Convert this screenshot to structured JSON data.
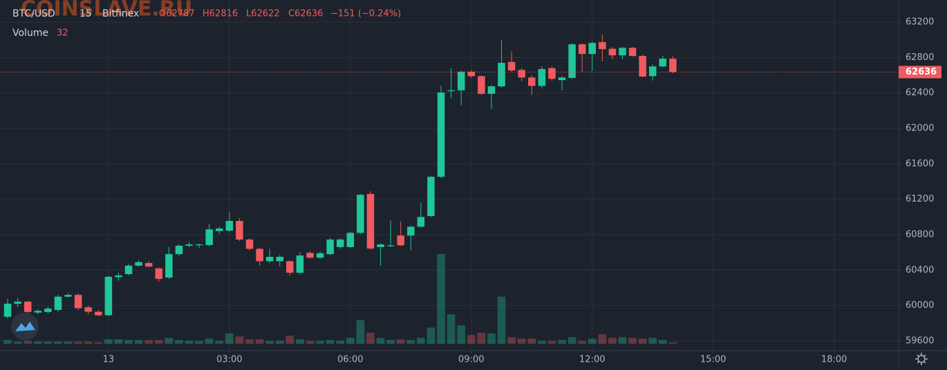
{
  "chart_data": {
    "type": "candlestick",
    "watermark": "COINSLAVE.RU",
    "symbol": "BTC/USD",
    "interval": "15",
    "exchange": "Bitfinex",
    "ohlc_labels": [
      "O62787",
      "H62816",
      "L62622",
      "C62636"
    ],
    "change_label": "−151 (−0.24%)",
    "volume_title": "Volume",
    "up_color": "#1fc79a",
    "down_color": "#ef5b60",
    "x": [
      -2.5,
      -2.25,
      -2,
      -1.75,
      -1.5,
      -1.25,
      -1,
      -0.75,
      -0.5,
      -0.25,
      0,
      0.25,
      0.5,
      0.75,
      1,
      1.25,
      1.5,
      1.75,
      2,
      2.25,
      2.5,
      2.75,
      3,
      3.25,
      3.5,
      3.75,
      4,
      4.25,
      4.5,
      4.75,
      5,
      5.25,
      5.5,
      5.75,
      6,
      6.25,
      6.5,
      6.75,
      7,
      7.25,
      7.5,
      7.75,
      8,
      8.25,
      8.5,
      8.75,
      9,
      9.25,
      9.5,
      9.75,
      10,
      10.25,
      10.5,
      10.75,
      11,
      11.25,
      11.5,
      11.75,
      12,
      12.25,
      12.5,
      12.75,
      13,
      13.25,
      13.5,
      13.75,
      14
    ],
    "open": [
      59873,
      60020,
      60044,
      59920,
      59927,
      59950,
      60100,
      60120,
      59980,
      59930,
      59890,
      60320,
      60355,
      60450,
      60480,
      60420,
      60316,
      60580,
      60675,
      60680,
      60683,
      60840,
      60845,
      60955,
      60745,
      60640,
      60500,
      60500,
      60500,
      60370,
      60595,
      60540,
      60580,
      60660,
      60660,
      60820,
      61260,
      60660,
      60670,
      60790,
      60790,
      60890,
      61010,
      61454,
      62420,
      62430,
      62640,
      62590,
      62390,
      62475,
      62750,
      62660,
      62575,
      62480,
      62680,
      62545,
      62570,
      62950,
      62840,
      62975,
      62900,
      62825,
      62910,
      62818,
      62590,
      62700,
      62787
    ],
    "high": [
      60075,
      60083,
      60052,
      59960,
      59990,
      60120,
      60140,
      60140,
      60000,
      59950,
      60335,
      60370,
      60470,
      60510,
      60500,
      60430,
      60660,
      60690,
      60720,
      60700,
      60920,
      60890,
      61060,
      60990,
      60760,
      60650,
      60640,
      60570,
      60510,
      60600,
      60610,
      60610,
      60760,
      60760,
      60830,
      61260,
      61290,
      60700,
      60960,
      60950,
      60900,
      61160,
      61460,
      62480,
      62680,
      62650,
      62660,
      62600,
      62490,
      63000,
      62870,
      62680,
      62600,
      62700,
      62700,
      62590,
      62960,
      62960,
      62980,
      63060,
      62920,
      62920,
      62920,
      62830,
      62720,
      62820,
      62816
    ],
    "low": [
      59850,
      59982,
      59904,
      59900,
      59910,
      59930,
      60090,
      59950,
      59900,
      59880,
      59880,
      60280,
      60340,
      60440,
      60430,
      60270,
      60300,
      60560,
      60660,
      60650,
      60670,
      60810,
      60830,
      60730,
      60620,
      60450,
      60480,
      60440,
      60340,
      60350,
      60530,
      60530,
      60570,
      60640,
      60650,
      60810,
      60630,
      60450,
      60660,
      60670,
      60620,
      60880,
      61000,
      61440,
      62340,
      62260,
      62570,
      62380,
      62220,
      62460,
      62640,
      62530,
      62380,
      62450,
      62540,
      62430,
      62560,
      62640,
      62650,
      62760,
      62780,
      62780,
      62810,
      62580,
      62540,
      62690,
      62622
    ],
    "close": [
      60021,
      60044,
      59927,
      59940,
      59966,
      60100,
      60120,
      59970,
      59930,
      59890,
      60325,
      60340,
      60450,
      60490,
      60440,
      60300,
      60580,
      60675,
      60690,
      60690,
      60860,
      60870,
      60955,
      60745,
      60640,
      60500,
      60550,
      60550,
      60370,
      60565,
      60540,
      60590,
      60745,
      60745,
      60820,
      61250,
      60643,
      60690,
      60680,
      60680,
      60890,
      61000,
      61454,
      62405,
      62430,
      62640,
      62590,
      62390,
      62475,
      62740,
      62655,
      62575,
      62480,
      62670,
      62560,
      62575,
      62950,
      62840,
      62965,
      62895,
      62825,
      62910,
      62818,
      62585,
      62700,
      62787,
      62636
    ],
    "volume": [
      75,
      45,
      60,
      45,
      45,
      45,
      45,
      45,
      45,
      30,
      90,
      90,
      75,
      75,
      75,
      75,
      120,
      75,
      60,
      60,
      105,
      60,
      210,
      150,
      90,
      90,
      60,
      60,
      165,
      90,
      60,
      60,
      75,
      60,
      120,
      480,
      225,
      120,
      75,
      90,
      75,
      120,
      330,
      1830,
      600,
      375,
      180,
      225,
      210,
      960,
      135,
      105,
      105,
      60,
      60,
      75,
      135,
      60,
      105,
      195,
      120,
      135,
      120,
      105,
      120,
      75,
      32
    ],
    "volume_lim": [
      0,
      7000
    ],
    "xlim": [
      -2.69,
      19.6
    ],
    "xticks": [
      {
        "value": 0,
        "label": "13"
      },
      {
        "value": 3,
        "label": "03:00"
      },
      {
        "value": 6,
        "label": "06:00"
      },
      {
        "value": 9,
        "label": "09:00"
      },
      {
        "value": 12,
        "label": "12:00"
      },
      {
        "value": 15,
        "label": "15:00"
      },
      {
        "value": 18,
        "label": "18:00"
      }
    ],
    "ylim": [
      59490,
      63450
    ],
    "yticks": [
      59600,
      60000,
      60400,
      60800,
      61200,
      61600,
      62000,
      62400,
      62800,
      63200
    ],
    "grid": true
  }
}
